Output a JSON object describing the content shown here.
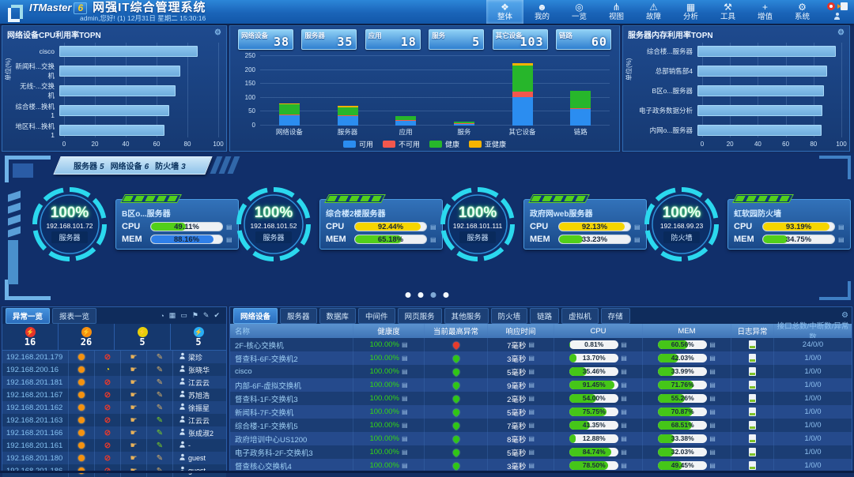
{
  "header": {
    "logo_text": "ITMaster",
    "logo_badge": "6",
    "title": "网强IT综合管理系统",
    "subtitle": "admin,您好! (1) 12月31日 星期二 15:30:16",
    "menu": [
      {
        "id": "overall",
        "label": "整体",
        "icon": "layers",
        "active": true
      },
      {
        "id": "mine",
        "label": "我的",
        "icon": "user",
        "active": false
      },
      {
        "id": "overview",
        "label": "一览",
        "icon": "overview",
        "active": false
      },
      {
        "id": "views",
        "label": "视图",
        "icon": "view",
        "active": false
      },
      {
        "id": "fault",
        "label": "故障",
        "icon": "fault",
        "active": false
      },
      {
        "id": "analysis",
        "label": "分析",
        "icon": "analysis",
        "active": false
      },
      {
        "id": "tools",
        "label": "工具",
        "icon": "tools",
        "active": false
      },
      {
        "id": "addon",
        "label": "增值",
        "icon": "plus",
        "active": false
      },
      {
        "id": "system",
        "label": "系统",
        "icon": "system",
        "active": false
      }
    ]
  },
  "top_left_panel": {
    "title": "网络设备CPU利用率TOPN",
    "chart_data": {
      "type": "bar-horizontal",
      "categories": [
        "cisco",
        "新闻科...交换机",
        "无线-...交换机",
        "综合楼...换机1",
        "地区科...换机1"
      ],
      "values": [
        87,
        76,
        73,
        69,
        66
      ],
      "ylabel": "单位(%)",
      "xlim": [
        0,
        100
      ],
      "xticks": [
        0,
        20,
        40,
        60,
        80,
        100
      ],
      "bar_color": "#7cb9ea"
    }
  },
  "top_center_panel": {
    "stats": [
      {
        "label": "网络设备",
        "value": "38"
      },
      {
        "label": "服务器",
        "value": "35"
      },
      {
        "label": "应用",
        "value": "18"
      },
      {
        "label": "服务",
        "value": "5"
      },
      {
        "label": "其它设备",
        "value": "103"
      },
      {
        "label": "链路",
        "value": "60"
      }
    ],
    "chart_data": {
      "type": "bar-stacked",
      "categories": [
        "网络设备",
        "服务器",
        "应用",
        "服务",
        "其它设备",
        "链路"
      ],
      "series": [
        {
          "name": "可用",
          "color": "#2b8df0",
          "values": [
            38,
            35,
            18,
            5,
            103,
            60
          ]
        },
        {
          "name": "不可用",
          "color": "#f2574d",
          "values": [
            1,
            2,
            3,
            1,
            20,
            3
          ]
        },
        {
          "name": "健康",
          "color": "#27b62b",
          "values": [
            37,
            27,
            15,
            5,
            95,
            62
          ]
        },
        {
          "name": "亚健康",
          "color": "#f5b300",
          "values": [
            1,
            6,
            0,
            0,
            8,
            0
          ]
        }
      ],
      "ylabel": "单位(个)",
      "ylim": [
        0,
        250
      ],
      "yticks": [
        0,
        50,
        100,
        150,
        200,
        250
      ],
      "legend_position": "bottom"
    }
  },
  "top_right_panel": {
    "title": "服务器内存利用率TOPN",
    "chart_data": {
      "type": "bar-horizontal",
      "categories": [
        "综合楼...服务器",
        "总部销售部4",
        "B区o...服务器",
        "电子政务数据分析",
        "内网o...服务器"
      ],
      "values": [
        96,
        90,
        88,
        87,
        86
      ],
      "ylabel": "单位(%)",
      "xlim": [
        0,
        100
      ],
      "xticks": [
        0,
        20,
        40,
        60,
        80,
        100
      ],
      "bar_color": "#7cb9ea"
    }
  },
  "middle_section": {
    "tabs": [
      {
        "label": "服务器",
        "count": "5"
      },
      {
        "label": "网络设备",
        "count": "6"
      },
      {
        "label": "防火墙",
        "count": "3"
      }
    ],
    "gauges": [
      {
        "percent": "100%",
        "ip": "192.168.101.72",
        "type": "服务器",
        "name": "B区o...服务器",
        "cpu": {
          "text": "49.11%",
          "value": 49.11,
          "color": "#52cf1a"
        },
        "mem": {
          "text": "88.16%",
          "value": 88.16,
          "color": "#2f7fe8"
        }
      },
      {
        "percent": "100%",
        "ip": "192.168.101.52",
        "type": "服务器",
        "name": "综合楼2楼服务器",
        "cpu": {
          "text": "92.44%",
          "value": 92.44,
          "color": "#f5d500"
        },
        "mem": {
          "text": "65.18%",
          "value": 65.18,
          "color": "#52cf1a"
        }
      },
      {
        "percent": "100%",
        "ip": "192.168.101.111",
        "type": "服务器",
        "name": "政府网web服务器",
        "cpu": {
          "text": "92.13%",
          "value": 92.13,
          "color": "#f5d500"
        },
        "mem": {
          "text": "33.23%",
          "value": 33.23,
          "color": "#52cf1a"
        }
      },
      {
        "percent": "100%",
        "ip": "192.168.99.23",
        "type": "防火墙",
        "name": "虹软园防火墙",
        "cpu": {
          "text": "93.19%",
          "value": 93.19,
          "color": "#f5d500"
        },
        "mem": {
          "text": "34.75%",
          "value": 34.75,
          "color": "#52cf1a"
        }
      }
    ],
    "pager_dots": 4,
    "active_dot": 2
  },
  "bottom_left": {
    "tabs": [
      {
        "label": "异常一览",
        "active": true
      },
      {
        "label": "报表一览",
        "active": false
      }
    ],
    "toolbar_icons": [
      "clock",
      "grid",
      "screen",
      "bell",
      "pencil",
      "check"
    ],
    "severity": [
      {
        "count": "16",
        "color": "#e5342a"
      },
      {
        "count": "26",
        "color": "#f78f0e"
      },
      {
        "count": "5",
        "color": "#e8cf0a"
      },
      {
        "count": "5",
        "color": "#29aef5"
      }
    ],
    "rows": [
      {
        "ip": "192.168.201.179",
        "user": "梁珍",
        "flag": "ban",
        "pencil": "tan"
      },
      {
        "ip": "192.168.200.16",
        "user": "张晓华",
        "flag": "clock",
        "pencil": "tan"
      },
      {
        "ip": "192.168.201.181",
        "user": "江云云",
        "flag": "ban",
        "pencil": "tan"
      },
      {
        "ip": "192.168.201.167",
        "user": "苏旭浩",
        "flag": "ban",
        "pencil": "tan"
      },
      {
        "ip": "192.168.201.162",
        "user": "徐振星",
        "flag": "ban",
        "pencil": "tan"
      },
      {
        "ip": "192.168.201.163",
        "user": "江云云",
        "flag": "ban",
        "pencil": "green"
      },
      {
        "ip": "192.168.201.166",
        "user": "张成淑2",
        "flag": "ban",
        "pencil": "green"
      },
      {
        "ip": "192.168.201.161",
        "user": "-",
        "flag": "ban",
        "pencil": "green"
      },
      {
        "ip": "192.168.201.180",
        "user": "guest",
        "flag": "ban",
        "pencil": "tan"
      },
      {
        "ip": "192.168.201.186",
        "user": "guest",
        "flag": "ban",
        "pencil": "tan"
      }
    ]
  },
  "bottom_right": {
    "tabs": [
      {
        "label": "网络设备",
        "active": true
      },
      {
        "label": "服务器",
        "active": false
      },
      {
        "label": "数据库",
        "active": false
      },
      {
        "label": "中间件",
        "active": false
      },
      {
        "label": "网页服务",
        "active": false
      },
      {
        "label": "其他服务",
        "active": false
      },
      {
        "label": "防火墙",
        "active": false
      },
      {
        "label": "链路",
        "active": false
      },
      {
        "label": "虚拟机",
        "active": false
      },
      {
        "label": "存储",
        "active": false
      }
    ],
    "columns": [
      "名称",
      "健康度",
      "当前最高异常",
      "响应时间",
      "CPU",
      "MEM",
      "日志异常",
      "接口总数/中断数/异常数"
    ],
    "rows": [
      {
        "name": "2F-核心交换机",
        "health": "100.00%",
        "marker": "red",
        "resp": "7毫秒",
        "cpu": {
          "text": "0.81%",
          "value": 0.81
        },
        "mem": {
          "text": "60.56%",
          "value": 60.56
        },
        "ports": "24/0/0"
      },
      {
        "name": "督查科-6F-交换机2",
        "health": "100.00%",
        "marker": "green",
        "resp": "3毫秒",
        "cpu": {
          "text": "13.70%",
          "value": 13.7
        },
        "mem": {
          "text": "42.03%",
          "value": 42.03
        },
        "ports": "1/0/0"
      },
      {
        "name": "cisco",
        "health": "100.00%",
        "marker": "green",
        "resp": "5毫秒",
        "cpu": {
          "text": "35.46%",
          "value": 35.46
        },
        "mem": {
          "text": "33.99%",
          "value": 33.99
        },
        "ports": "1/0/0"
      },
      {
        "name": "内部-6F-虚拟交换机",
        "health": "100.00%",
        "marker": "green",
        "resp": "9毫秒",
        "cpu": {
          "text": "91.45%",
          "value": 91.45
        },
        "mem": {
          "text": "71.76%",
          "value": 71.76
        },
        "ports": "1/0/0"
      },
      {
        "name": "督查科-1F-交换机3",
        "health": "100.00%",
        "marker": "green",
        "resp": "2毫秒",
        "cpu": {
          "text": "54.00%",
          "value": 54.0
        },
        "mem": {
          "text": "55.26%",
          "value": 55.26
        },
        "ports": "1/0/0"
      },
      {
        "name": "新闻科-7F-交换机",
        "health": "100.00%",
        "marker": "green",
        "resp": "5毫秒",
        "cpu": {
          "text": "75.75%",
          "value": 75.75
        },
        "mem": {
          "text": "70.87%",
          "value": 70.87
        },
        "ports": "1/0/0"
      },
      {
        "name": "综合楼-1F-交换机5",
        "health": "100.00%",
        "marker": "green",
        "resp": "7毫秒",
        "cpu": {
          "text": "41.35%",
          "value": 41.35
        },
        "mem": {
          "text": "68.51%",
          "value": 68.51
        },
        "ports": "1/0/0"
      },
      {
        "name": "政府培训中心US1200",
        "health": "100.00%",
        "marker": "green",
        "resp": "8毫秒",
        "cpu": {
          "text": "12.88%",
          "value": 12.88
        },
        "mem": {
          "text": "33.38%",
          "value": 33.38
        },
        "ports": "1/0/0"
      },
      {
        "name": "电子政务科-2F-交换机3",
        "health": "100.00%",
        "marker": "green",
        "resp": "5毫秒",
        "cpu": {
          "text": "84.74%",
          "value": 84.74
        },
        "mem": {
          "text": "32.03%",
          "value": 32.03
        },
        "ports": "1/0/0"
      },
      {
        "name": "督查核心交换机4",
        "health": "100.00%",
        "marker": "green",
        "resp": "3毫秒",
        "cpu": {
          "text": "78.50%",
          "value": 78.5
        },
        "mem": {
          "text": "49.45%",
          "value": 49.45
        },
        "ports": "1/0/0"
      }
    ]
  }
}
